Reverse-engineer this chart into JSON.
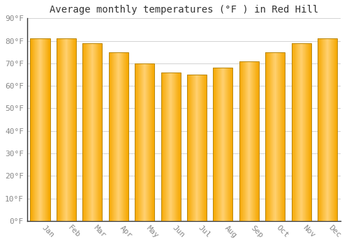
{
  "title": "Average monthly temperatures (°F ) in Red Hill",
  "months": [
    "Jan",
    "Feb",
    "Mar",
    "Apr",
    "May",
    "Jun",
    "Jul",
    "Aug",
    "Sep",
    "Oct",
    "Nov",
    "Dec"
  ],
  "values": [
    81,
    81,
    79,
    75,
    70,
    66,
    65,
    68,
    71,
    75,
    79,
    81
  ],
  "ylim": [
    0,
    90
  ],
  "yticks": [
    0,
    10,
    20,
    30,
    40,
    50,
    60,
    70,
    80,
    90
  ],
  "ytick_labels": [
    "0°F",
    "10°F",
    "20°F",
    "30°F",
    "40°F",
    "50°F",
    "60°F",
    "70°F",
    "80°F",
    "90°F"
  ],
  "bar_color_center": "#FFD070",
  "bar_color_edge": "#F5A800",
  "bar_outline_color": "#B8860B",
  "background_color": "#FFFFFF",
  "plot_bg_color": "#FFFFFF",
  "grid_color": "#CCCCCC",
  "title_fontsize": 10,
  "tick_fontsize": 8,
  "font_family": "monospace"
}
